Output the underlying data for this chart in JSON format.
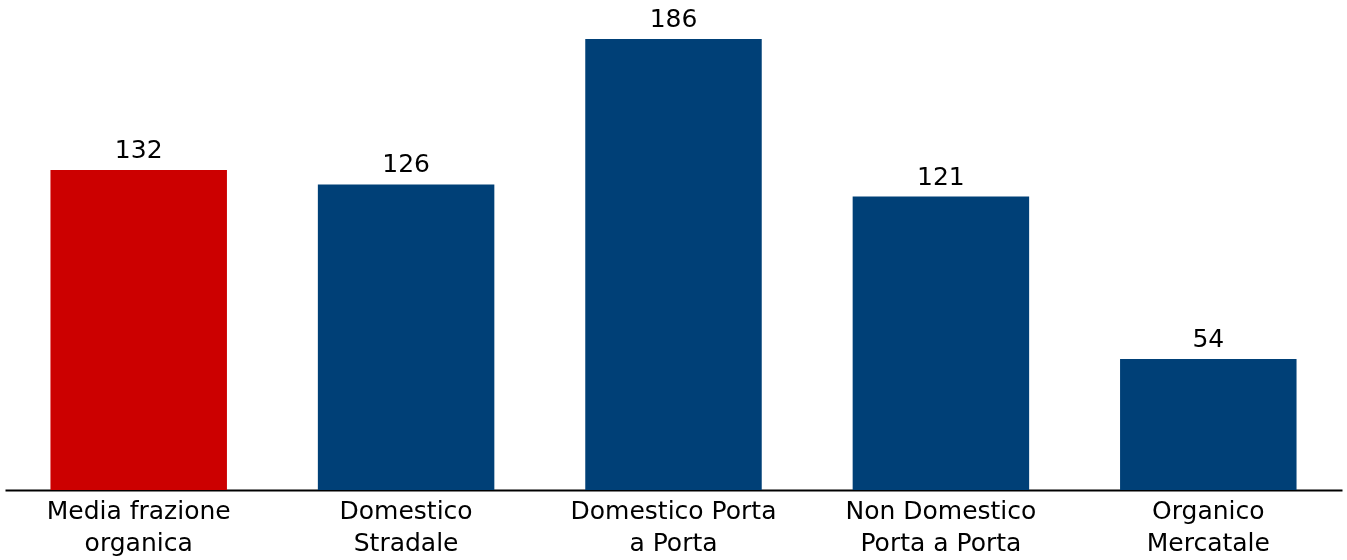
{
  "chart_data": {
    "type": "bar",
    "categories": [
      "Media frazione organica",
      "Domestico Stradale",
      "Domestico Porta a Porta",
      "Non Domestico Porta a Porta",
      "Organico Mercatale"
    ],
    "values": [
      132,
      126,
      186,
      121,
      54
    ],
    "colors": [
      "#cc0000",
      "#004077",
      "#004077",
      "#004077",
      "#004077"
    ],
    "data_labels": true
  }
}
